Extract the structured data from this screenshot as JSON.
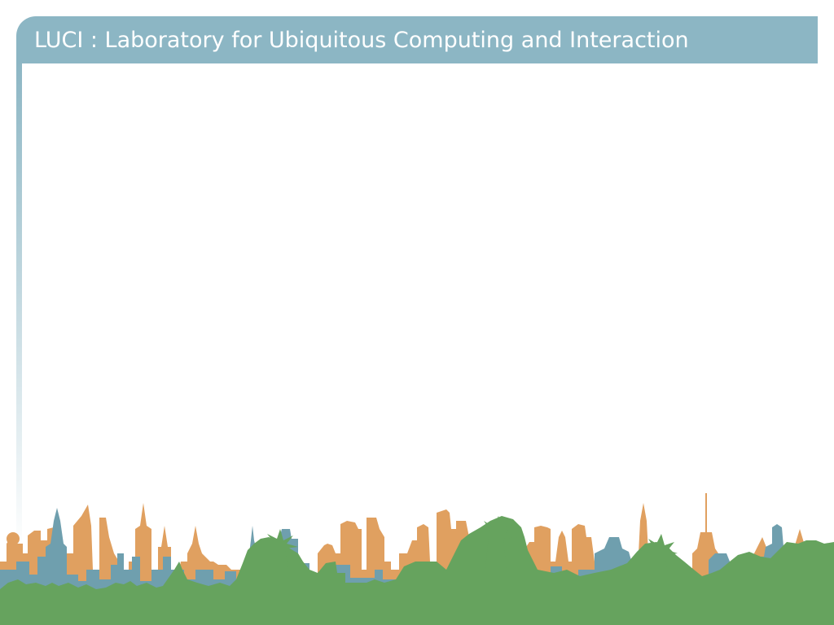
{
  "slide": {
    "title": "LUCI : Laboratory for Ubiquitous Computing and Interaction"
  },
  "colors": {
    "header_bar": "#8cb6c4",
    "header_text": "#ffffff",
    "side_rule": "#8cb6c4",
    "skyline_far": "#e0a060",
    "skyline_mid": "#6f9fae",
    "skyline_front": "#66a35e",
    "background": "#ffffff"
  }
}
